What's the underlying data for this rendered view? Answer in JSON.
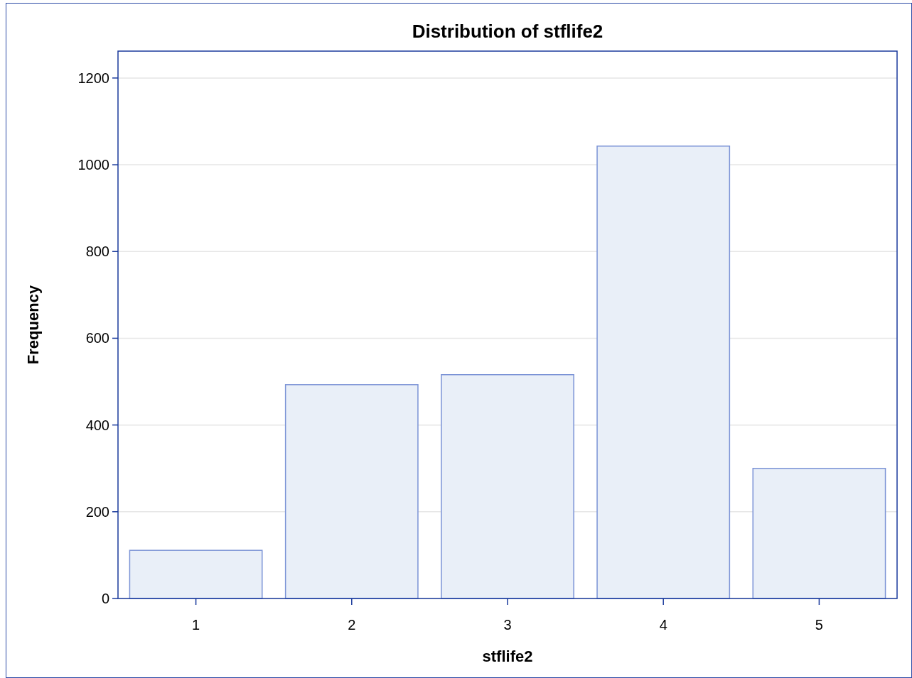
{
  "chart_data": {
    "type": "bar",
    "title": "Distribution of stflife2",
    "xlabel": "stflife2",
    "ylabel": "Frequency",
    "categories": [
      "1",
      "2",
      "3",
      "4",
      "5"
    ],
    "values": [
      111,
      493,
      516,
      1043,
      300
    ],
    "color": "#e9eff8",
    "ylim": [
      0,
      1262
    ],
    "yticks": [
      0,
      200,
      400,
      600,
      800,
      1000,
      1200
    ],
    "grid": "y"
  }
}
